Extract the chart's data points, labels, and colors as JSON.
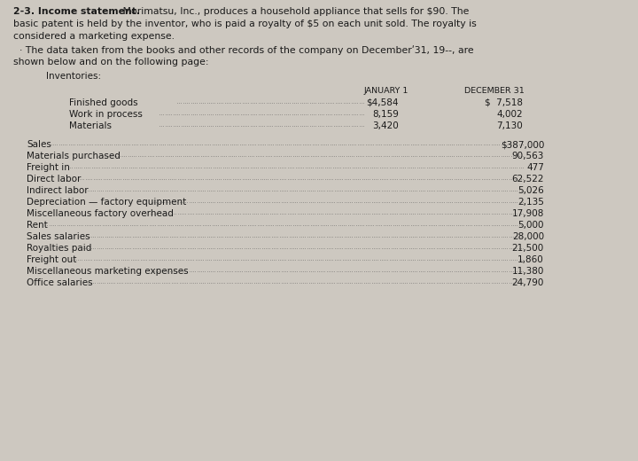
{
  "bg_color": "#cdc8c0",
  "title_bold": "2-3. Income statement.",
  "title_rest": " Morimatsu, Inc., produces a household appliance that sells for $90. The",
  "line2": "basic patent is held by the inventor, who is paid a royalty of $5 on each unit sold. The royalty is",
  "line3": "considered a marketing expense.",
  "line4": "  · The data taken from the books and other records of the company on Decemberʹ31, 19--, are",
  "line5": "shown below and on the following page:",
  "inventories_label": "Inventories:",
  "col_jan": "JANUARY 1",
  "col_dec": "DECEMBER 31",
  "inventory_rows": [
    {
      "label": "Finished goods",
      "jan": "$4,584",
      "dec": "$  7,518"
    },
    {
      "label": "Work in process",
      "jan": "8,159",
      "dec": "4,002"
    },
    {
      "label": "Materials",
      "jan": "3,420",
      "dec": "7,130"
    }
  ],
  "data_rows": [
    {
      "label": "Sales",
      "value": "$387,000"
    },
    {
      "label": "Materials purchased",
      "value": "90,563"
    },
    {
      "label": "Freight in",
      "value": "477"
    },
    {
      "label": "Direct labor",
      "value": "62,522"
    },
    {
      "label": "Indirect labor",
      "value": "5,026"
    },
    {
      "label": "Depreciation — factory equipment",
      "value": "2,135"
    },
    {
      "label": "Miscellaneous factory overhead",
      "value": "17,908"
    },
    {
      "label": "Rent",
      "value": "5,000"
    },
    {
      "label": "Sales salaries",
      "value": "28,000"
    },
    {
      "label": "Royalties paid",
      "value": "21,500"
    },
    {
      "label": "Freight out",
      "value": "1,860"
    },
    {
      "label": "Miscellaneous marketing expenses",
      "value": "11,380"
    },
    {
      "label": "Office salaries",
      "value": "24,790"
    }
  ],
  "font_size": 7.5,
  "text_color": "#1a1a1a"
}
